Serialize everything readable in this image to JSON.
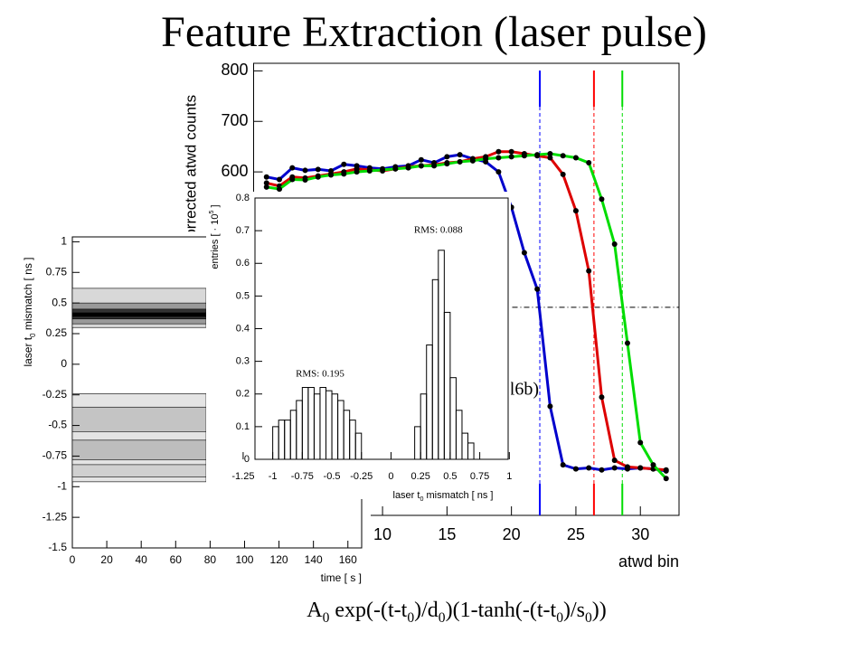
{
  "title": "Feature Extraction (laser pulse)",
  "formula": [
    {
      "text": "A"
    },
    {
      "text": "0",
      "sub": true
    },
    {
      "text": " exp(-(t-t"
    },
    {
      "text": "0",
      "sub": true
    },
    {
      "text": ")/d"
    },
    {
      "text": "0",
      "sub": true
    },
    {
      "text": ")(1-tanh(-(t-t"
    },
    {
      "text": "0",
      "sub": true
    },
    {
      "text": ")/s"
    },
    {
      "text": "0",
      "sub": true
    },
    {
      "text": "))"
    }
  ],
  "chart_data": [
    {
      "type": "line",
      "xlabel": "atwd bin",
      "ylabel": "corrected atwd counts",
      "annotation": "(l6b)",
      "x": [
        1,
        2,
        3,
        4,
        5,
        6,
        7,
        8,
        9,
        10,
        11,
        12,
        13,
        14,
        15,
        16,
        17,
        18,
        19,
        20,
        21,
        22,
        23,
        24,
        25,
        26,
        27,
        28,
        29,
        30,
        31,
        32
      ],
      "series": [
        {
          "name": "blue",
          "color": "#0000cc",
          "values": [
            590,
            585,
            608,
            603,
            605,
            602,
            615,
            612,
            608,
            606,
            610,
            612,
            624,
            618,
            630,
            634,
            626,
            620,
            600,
            530,
            440,
            368,
            136,
            20,
            12,
            14,
            10,
            14,
            12,
            14,
            12,
            8
          ]
        },
        {
          "name": "red",
          "color": "#dd0000",
          "values": [
            578,
            572,
            590,
            588,
            592,
            596,
            600,
            606,
            604,
            602,
            606,
            610,
            612,
            614,
            618,
            620,
            626,
            630,
            640,
            640,
            636,
            632,
            628,
            595,
            523,
            404,
            154,
            29,
            16,
            14,
            12,
            10
          ]
        },
        {
          "name": "green",
          "color": "#00dd00",
          "values": [
            570,
            566,
            585,
            584,
            590,
            594,
            596,
            600,
            602,
            604,
            606,
            608,
            612,
            612,
            616,
            620,
            622,
            626,
            628,
            630,
            632,
            634,
            636,
            632,
            628,
            618,
            546,
            457,
            261,
            64,
            20,
            -7
          ]
        }
      ],
      "markers": [
        {
          "x": 22.2,
          "color": "#0000ff"
        },
        {
          "x": 26.4,
          "color": "#ff0000"
        },
        {
          "x": 28.6,
          "color": "#00dd00"
        }
      ],
      "hline": 332,
      "xlim": [
        0,
        33
      ],
      "ylim": [
        -80,
        815
      ],
      "xticks": [
        10,
        15,
        20,
        25,
        30
      ],
      "yticks": [
        600,
        700,
        800
      ]
    },
    {
      "type": "contour",
      "xlabel": "time [ s ]",
      "ylabel": [
        {
          "text": "laser t"
        },
        {
          "text": "0",
          "sub": true
        },
        {
          "text": " mismatch [ ns ]"
        }
      ],
      "xlim": [
        0,
        168
      ],
      "ylim": [
        -1.5,
        1.04
      ],
      "xticks": [
        0,
        20,
        40,
        60,
        80,
        100,
        120,
        140,
        160
      ],
      "yticks": [
        -1.5,
        -1.25,
        -1,
        -0.75,
        -0.5,
        -0.25,
        0,
        0.25,
        0.5,
        0.75,
        1
      ]
    },
    {
      "type": "histogram",
      "xlabel": [
        {
          "text": "laser t"
        },
        {
          "text": "0",
          "sub": true
        },
        {
          "text": " mismatch [ ns ]"
        }
      ],
      "ylabel": [
        {
          "text": "entries [ · 10"
        },
        {
          "text": "5",
          "sup": true
        },
        {
          "text": " ]"
        }
      ],
      "bins": [
        -1,
        -0.95,
        -0.9,
        -0.85,
        -0.8,
        -0.75,
        -0.7,
        -0.65,
        -0.6,
        -0.55,
        -0.5,
        -0.45,
        -0.4,
        -0.35,
        -0.3,
        -0.25,
        -0.2,
        -0.15,
        -0.1,
        -0.05,
        0,
        0.05,
        0.1,
        0.15,
        0.2,
        0.25,
        0.3,
        0.35,
        0.4,
        0.45,
        0.5,
        0.55,
        0.6,
        0.65,
        0.7
      ],
      "values": [
        0.1,
        0.12,
        0.12,
        0.15,
        0.18,
        0.22,
        0.22,
        0.2,
        0.22,
        0.21,
        0.2,
        0.18,
        0.15,
        0.12,
        0.08,
        0,
        0,
        0,
        0,
        0,
        0,
        0,
        0,
        0,
        0.1,
        0.2,
        0.35,
        0.55,
        0.64,
        0.45,
        0.25,
        0.15,
        0.08,
        0.05
      ],
      "annotations": [
        {
          "text": "RMS: 0.195",
          "x": -0.6,
          "y": 0.26
        },
        {
          "text": "RMS: 0.088",
          "x": 0.4,
          "y": 0.7
        }
      ],
      "xlim": [
        -1.15,
        0.99
      ],
      "ylim": [
        0,
        0.8
      ],
      "xticks": [
        -1.25,
        -1,
        -0.75,
        -0.5,
        -0.25,
        0,
        0.25,
        0.5,
        0.75,
        1
      ],
      "yticks": [
        0,
        0.1,
        0.2,
        0.3,
        0.4,
        0.5,
        0.6,
        0.7,
        0.8
      ]
    }
  ]
}
